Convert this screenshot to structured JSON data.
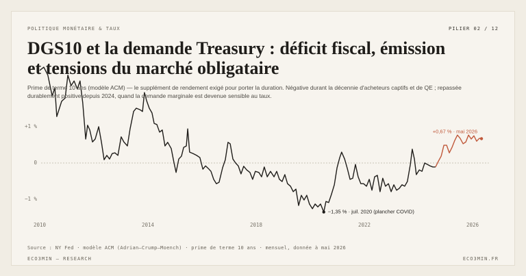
{
  "page": {
    "kicker": "POLITIQUE MONÉTAIRE & TAUX",
    "page_label": "PILIER 02 / 12",
    "title": "DGS10 et la demande Treasury : déficit fiscal, émission et tensions du marché obligataire",
    "subtitle": "Prime de terme 10 ans (modèle ACM) — le supplément de rendement exigé pour porter la duration. Négative durant la décennie d'acheteurs captifs et de QE ; repassée durablement positive depuis 2024, quand la demande marginale est devenue sensible au taux.",
    "source": "Source : NY Fed · modèle ACM (Adrian–Crump–Moench) · prime de terme 10 ans · mensuel, donnée à mai 2026",
    "footer_left": "ECO3MIN — RESEARCH",
    "footer_right": "ECO3MIN.FR"
  },
  "chart_data": {
    "type": "line",
    "xlim": [
      2010,
      2026.6
    ],
    "xticks": [
      2010,
      2014,
      2018,
      2022,
      2026
    ],
    "ylim": [
      -1.6,
      2.6
    ],
    "yticks": [
      {
        "value": 1,
        "label": "+1 %"
      },
      0,
      {
        "value": -1,
        "label": "−1 %"
      }
    ],
    "grid": false,
    "zero_line": true,
    "series": [
      {
        "color": "#1f1d1a",
        "x": [
          2010,
          2010.15,
          2010.3,
          2010.46,
          2010.56,
          2010.63,
          2010.81,
          2010.94,
          2011.04,
          2011.16,
          2011.27,
          2011.39,
          2011.49,
          2011.59,
          2011.7,
          2011.77,
          2011.85,
          2011.95,
          2012.05,
          2012.18,
          2012.28,
          2012.38,
          2012.48,
          2012.58,
          2012.68,
          2012.78,
          2012.89,
          2013.01,
          2013.11,
          2013.24,
          2013.34,
          2013.47,
          2013.57,
          2013.7,
          2013.8,
          2013.87,
          2013.95,
          2014.05,
          2014.15,
          2014.23,
          2014.33,
          2014.43,
          2014.53,
          2014.63,
          2014.73,
          2014.86,
          2014.96,
          2015.04,
          2015.14,
          2015.24,
          2015.32,
          2015.42,
          2015.47,
          2015.54,
          2015.67,
          2015.8,
          2015.92,
          2016.03,
          2016.13,
          2016.23,
          2016.33,
          2016.43,
          2016.53,
          2016.63,
          2016.76,
          2016.86,
          2016.96,
          2017.04,
          2017.14,
          2017.24,
          2017.34,
          2017.44,
          2017.54,
          2017.65,
          2017.77,
          2017.87,
          2017.97,
          2018.1,
          2018.2,
          2018.3,
          2018.41,
          2018.53,
          2018.66,
          2018.76,
          2018.86,
          2018.96,
          2019.06,
          2019.16,
          2019.27,
          2019.37,
          2019.47,
          2019.57,
          2019.67,
          2019.77,
          2019.87,
          2019.97,
          2020.08,
          2020.18,
          2020.28,
          2020.38,
          2020.5,
          2020.58,
          2020.68,
          2020.78,
          2020.89,
          2020.99,
          2021.09,
          2021.16,
          2021.27,
          2021.37,
          2021.47,
          2021.57,
          2021.67,
          2021.77,
          2021.87,
          2021.97,
          2022.08,
          2022.18,
          2022.28,
          2022.38,
          2022.48,
          2022.58,
          2022.68,
          2022.78,
          2022.89,
          2022.99,
          2023.09,
          2023.19,
          2023.29,
          2023.39,
          2023.49,
          2023.59,
          2023.7,
          2023.77,
          2023.85,
          2023.92,
          2024.03,
          2024.13,
          2024.23,
          2024.33,
          2024.43,
          2024.53,
          2024.63
        ],
        "values": [
          2.55,
          2.64,
          2.42,
          1.85,
          2.07,
          1.28,
          1.7,
          1.79,
          2.42,
          2.13,
          2.26,
          2.04,
          2.26,
          1.66,
          0.66,
          1.04,
          0.91,
          0.58,
          0.66,
          1.0,
          0.58,
          0.09,
          0.21,
          0.11,
          0.26,
          0.28,
          0.21,
          0.72,
          0.58,
          0.47,
          0.94,
          1.42,
          1.51,
          1.47,
          1.42,
          1.94,
          1.72,
          1.51,
          1.38,
          1.09,
          1.06,
          0.85,
          0.91,
          0.47,
          0.57,
          0.4,
          0.02,
          -0.26,
          0.11,
          0.19,
          0.43,
          0.47,
          0.94,
          0.3,
          0.26,
          0.21,
          0.15,
          -0.17,
          -0.08,
          -0.15,
          -0.23,
          -0.45,
          -0.57,
          -0.53,
          -0.13,
          0.09,
          0.57,
          0.53,
          0.11,
          0,
          -0.08,
          -0.3,
          -0.09,
          -0.19,
          -0.26,
          -0.45,
          -0.23,
          -0.26,
          -0.38,
          -0.11,
          -0.38,
          -0.23,
          -0.38,
          -0.23,
          -0.45,
          -0.51,
          -0.32,
          -0.57,
          -0.64,
          -0.79,
          -0.72,
          -1.17,
          -0.89,
          -1.02,
          -0.89,
          -1.13,
          -1.26,
          -1.13,
          -1.21,
          -1.13,
          -1.35,
          -1.06,
          -1.09,
          -0.87,
          -0.6,
          -0.13,
          0.15,
          0.3,
          0.11,
          -0.15,
          -0.45,
          -0.42,
          -0.04,
          -0.38,
          -0.57,
          -0.57,
          -0.64,
          -0.45,
          -0.75,
          -0.38,
          -0.34,
          -0.79,
          -0.42,
          -0.64,
          -0.57,
          -0.79,
          -0.6,
          -0.75,
          -0.7,
          -0.6,
          -0.64,
          -0.51,
          -0.04,
          0.38,
          0.11,
          -0.32,
          -0.19,
          -0.23,
          0,
          -0.04,
          -0.08,
          -0.11,
          -0.11
        ]
      },
      {
        "color": "#c0583a",
        "x": [
          2024.63,
          2024.73,
          2024.84,
          2024.94,
          2025.04,
          2025.14,
          2025.24,
          2025.34,
          2025.44,
          2025.54,
          2025.65,
          2025.75,
          2025.85,
          2025.95,
          2026.05,
          2026.15,
          2026.25,
          2026.33
        ],
        "values": [
          -0.11,
          0.04,
          0.19,
          0.49,
          0.49,
          0.28,
          0.43,
          0.62,
          0.77,
          0.68,
          0.53,
          0.58,
          0.77,
          0.66,
          0.75,
          0.6,
          0.68,
          0.67
        ]
      }
    ],
    "annotations": [
      {
        "text": "−1,35 % · juil. 2020 (plancher COVID)",
        "series": 0,
        "point": 100
      },
      {
        "text": "+0,67 % · mai 2026",
        "series": 1,
        "point": 17
      }
    ]
  }
}
